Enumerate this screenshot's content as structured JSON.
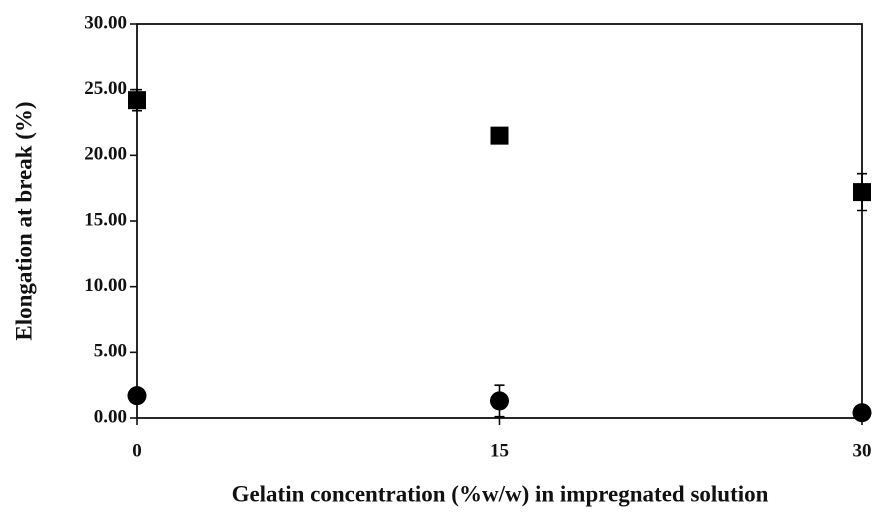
{
  "chart_data": {
    "type": "scatter",
    "xlabel": "Gelatin concentration (%w/w) in impregnated solution",
    "ylabel": "Elongation at break (%)",
    "x": [
      0,
      15,
      30
    ],
    "series": [
      {
        "color": "#000000",
        "marker": "square",
        "values": [
          24.2,
          21.5,
          17.2
        ],
        "errors": [
          0.8,
          0.4,
          1.4
        ]
      },
      {
        "color": "#000000",
        "marker": "circle",
        "values": [
          1.7,
          1.3,
          0.4
        ],
        "errors": [
          0.3,
          1.2,
          0.1
        ]
      }
    ],
    "xlim": [
      0,
      30
    ],
    "xticks": [
      0,
      15,
      30
    ],
    "ylim": [
      0,
      30
    ],
    "yticks": [
      {
        "value": 0,
        "label": "0.00"
      },
      {
        "value": 5,
        "label": "5.00"
      },
      {
        "value": 10,
        "label": "10.00"
      },
      {
        "value": 15,
        "label": "15.00"
      },
      {
        "value": 20,
        "label": "20.00"
      },
      {
        "value": 25,
        "label": "25.00"
      },
      {
        "value": 30,
        "label": "30.00"
      }
    ],
    "grid": false
  }
}
